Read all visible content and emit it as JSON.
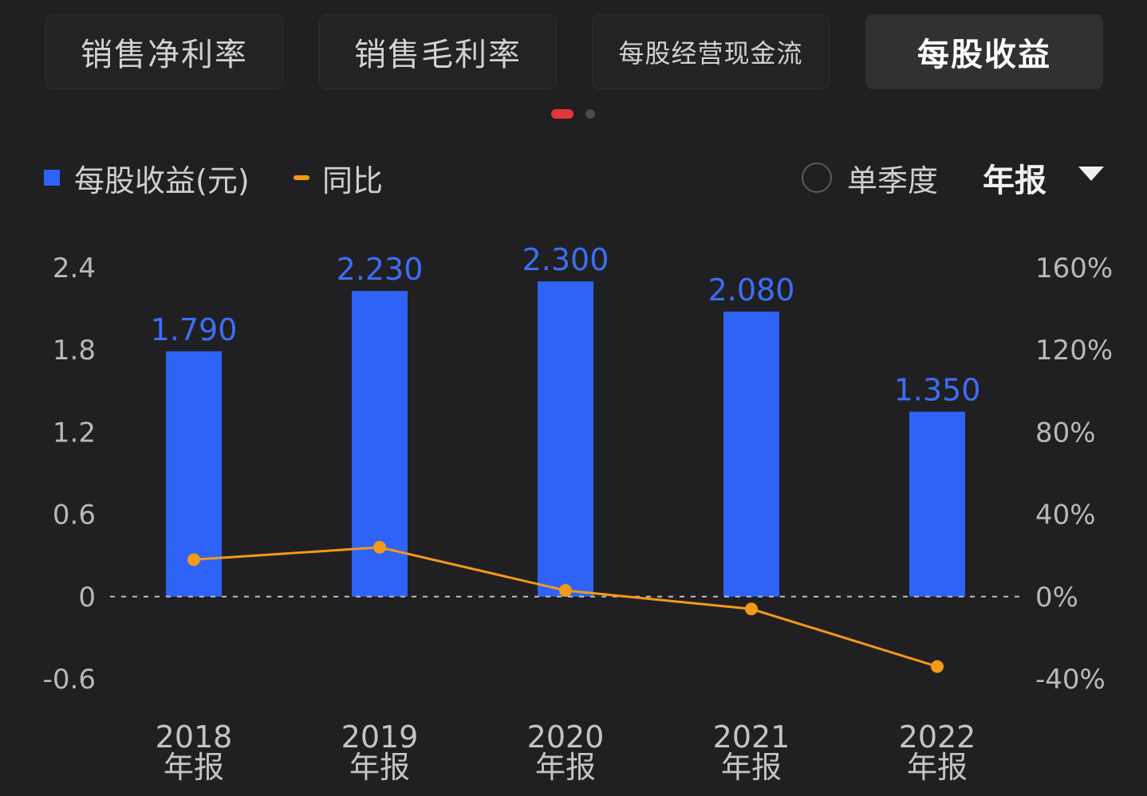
{
  "tabs": [
    {
      "label": "销售净利率",
      "active": false
    },
    {
      "label": "销售毛利率",
      "active": false
    },
    {
      "label": "每股经营现金流",
      "active": false
    },
    {
      "label": "每股收益",
      "active": true
    }
  ],
  "pager": {
    "pages": 2,
    "current": 1
  },
  "legend": {
    "bar_label": "每股收益(元)",
    "line_label": "同比"
  },
  "controls": {
    "quarter_label": "单季度",
    "quarter_selected": false,
    "period_value": "年报"
  },
  "colors": {
    "bar": "#2f62f6",
    "line": "#f39a16",
    "background": "#202022"
  },
  "chart_data": {
    "type": "bar",
    "categories": [
      "2018\n年报",
      "2019\n年报",
      "2020\n年报",
      "2021\n年报",
      "2022\n年报"
    ],
    "series": [
      {
        "name": "每股收益(元)",
        "type": "bar",
        "axis": "left",
        "values": [
          1.79,
          2.23,
          2.3,
          2.08,
          1.35
        ],
        "labels": [
          "1.790",
          "2.230",
          "2.300",
          "2.080",
          "1.350"
        ]
      },
      {
        "name": "同比",
        "type": "line",
        "axis": "right",
        "values": [
          18,
          24,
          3,
          -6,
          -34
        ],
        "unit": "%"
      }
    ],
    "left_axis": {
      "ylim": [
        -0.6,
        2.4
      ],
      "ticks": [
        "2.4",
        "1.8",
        "1.2",
        "0.6",
        "0",
        "-0.6"
      ]
    },
    "right_axis": {
      "ylim": [
        -40,
        160
      ],
      "ticks": [
        "160%",
        "120%",
        "80%",
        "40%",
        "0%",
        "-40%"
      ]
    },
    "zero_line": "dashed",
    "grid": false
  }
}
